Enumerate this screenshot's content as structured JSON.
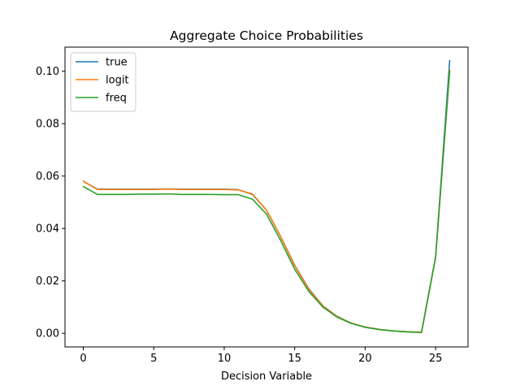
{
  "chart_data": {
    "type": "line",
    "title": "Aggregate Choice Probabilities",
    "xlabel": "Decision Variable",
    "ylabel": "",
    "xlim": [
      -1.3,
      27.3
    ],
    "ylim": [
      -0.0052,
      0.1092
    ],
    "xticks": [
      0,
      5,
      10,
      15,
      20,
      25
    ],
    "yticks": [
      0.0,
      0.02,
      0.04,
      0.06,
      0.08,
      0.1
    ],
    "ytick_labels": [
      "0.00",
      "0.02",
      "0.04",
      "0.06",
      "0.08",
      "0.10"
    ],
    "legend_position": "top-left",
    "grid": false,
    "x": [
      0,
      1,
      2,
      3,
      4,
      5,
      6,
      7,
      8,
      9,
      10,
      11,
      12,
      13,
      14,
      15,
      16,
      17,
      18,
      19,
      20,
      21,
      22,
      23,
      24,
      25,
      26
    ],
    "series": [
      {
        "name": "true",
        "color": "#1f77b4",
        "values": [
          0.058,
          0.055,
          0.055,
          0.055,
          0.055,
          0.055,
          0.0551,
          0.055,
          0.055,
          0.055,
          0.055,
          0.0548,
          0.053,
          0.047,
          0.037,
          0.026,
          0.017,
          0.0105,
          0.0065,
          0.0039,
          0.0024,
          0.0015,
          0.0009,
          0.0006,
          0.0004,
          0.029,
          0.104
        ]
      },
      {
        "name": "logit",
        "color": "#ff7f0e",
        "values": [
          0.058,
          0.0549,
          0.0549,
          0.0549,
          0.0549,
          0.0549,
          0.055,
          0.0549,
          0.0549,
          0.0549,
          0.0549,
          0.0547,
          0.0532,
          0.047,
          0.037,
          0.0258,
          0.0168,
          0.0104,
          0.0064,
          0.0039,
          0.0024,
          0.0015,
          0.0009,
          0.0006,
          0.0004,
          0.029,
          0.1005
        ]
      },
      {
        "name": "freq",
        "color": "#2ca02c",
        "values": [
          0.056,
          0.053,
          0.053,
          0.053,
          0.0531,
          0.0531,
          0.0532,
          0.053,
          0.053,
          0.053,
          0.0529,
          0.0529,
          0.0512,
          0.0455,
          0.0355,
          0.0245,
          0.016,
          0.01,
          0.0062,
          0.0038,
          0.0023,
          0.0014,
          0.0009,
          0.0005,
          0.0003,
          0.029,
          0.1
        ]
      }
    ]
  }
}
